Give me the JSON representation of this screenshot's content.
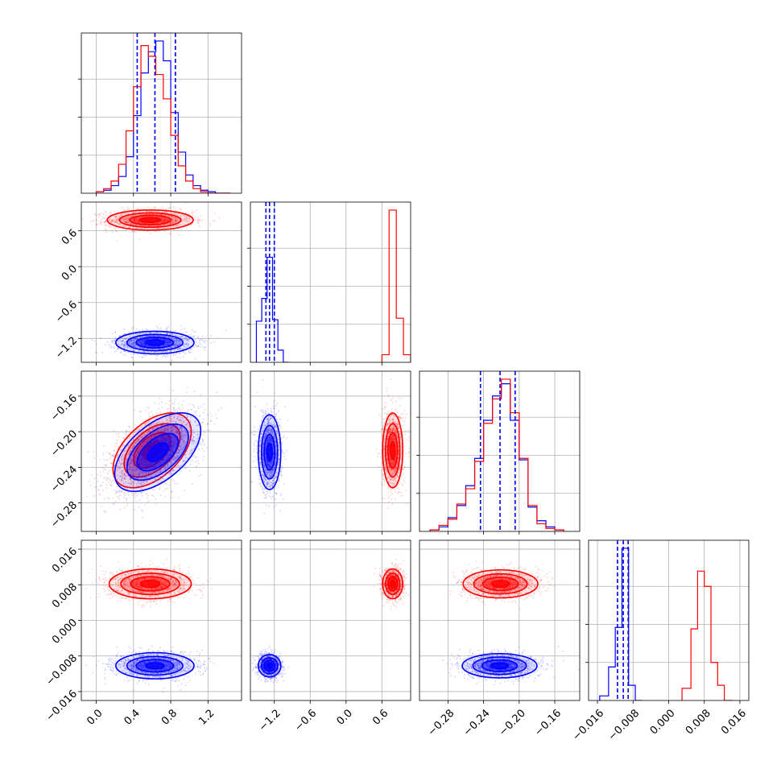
{
  "chart_data": {
    "type": "corner",
    "grid": true,
    "series": [
      {
        "color": "#0000ff"
      },
      {
        "color": "#ff0000"
      }
    ],
    "marginal_lines": {
      "color": "#0000ff",
      "style": "dashed"
    },
    "params": [
      {
        "range": [
          -0.16,
          1.56
        ],
        "ticks": [
          0.0,
          0.4,
          0.8,
          1.2
        ],
        "tick_labels": [
          "0.0",
          "0.4",
          "0.8",
          "1.2"
        ],
        "quantiles": [
          0.44,
          0.63,
          0.85
        ],
        "hist": {
          "bin_edges": [
            0.0,
            0.08,
            0.16,
            0.24,
            0.32,
            0.4,
            0.48,
            0.56,
            0.64,
            0.72,
            0.8,
            0.88,
            0.96,
            1.04,
            1.12,
            1.2,
            1.28,
            1.36,
            1.44
          ],
          "blue": [
            1,
            2,
            5,
            11,
            24,
            51,
            79,
            93,
            100,
            87,
            53,
            27,
            12,
            5,
            2,
            1,
            0,
            0
          ],
          "red": [
            1,
            3,
            8,
            19,
            41,
            70,
            97,
            90,
            78,
            62,
            38,
            18,
            8,
            3,
            1,
            0,
            0,
            0
          ]
        }
      },
      {
        "range": [
          -1.6,
          1.08
        ],
        "ticks": [
          -1.2,
          -0.6,
          0.0,
          0.6
        ],
        "tick_labels": [
          "−1.2",
          "−0.6",
          "0.0",
          "0.6"
        ],
        "quantiles": [
          -1.34,
          -1.28,
          -1.2
        ],
        "hist": {
          "bin_edges": [
            -1.5,
            -1.41,
            -1.32,
            -1.23,
            -1.14,
            -1.05,
            -0.96
          ],
          "blue": [
            27,
            42,
            69,
            28,
            8,
            0
          ],
          "bin_edges_red": [
            0.6,
            0.72,
            0.84,
            0.96,
            1.08
          ],
          "red": [
            5,
            100,
            29,
            5
          ]
        },
        "hist_max": 100
      },
      {
        "range": [
          -0.312,
          -0.132
        ],
        "ticks": [
          -0.28,
          -0.24,
          -0.2,
          -0.16
        ],
        "tick_labels": [
          "−0.28",
          "−0.24",
          "−0.20",
          "−0.16"
        ],
        "quantiles": [
          -0.2435,
          -0.2215,
          -0.2045
        ],
        "hist": {
          "bin_edges": [
            -0.3,
            -0.29,
            -0.28,
            -0.27,
            -0.26,
            -0.25,
            -0.24,
            -0.23,
            -0.22,
            -0.21,
            -0.2,
            -0.19,
            -0.18,
            -0.17,
            -0.16,
            -0.15
          ],
          "blue": [
            1,
            3,
            9,
            17,
            30,
            48,
            73,
            89,
            97,
            73,
            47,
            16,
            7,
            3,
            1
          ],
          "red": [
            1,
            4,
            8,
            18,
            28,
            46,
            71,
            87,
            100,
            78,
            48,
            17,
            5,
            2,
            1
          ]
        }
      },
      {
        "range": [
          -0.018,
          0.018
        ],
        "ticks": [
          -0.016,
          -0.008,
          0.0,
          0.008,
          0.016
        ],
        "tick_labels": [
          "−0.016",
          "−0.008",
          "0.000",
          "0.008",
          "0.016"
        ],
        "quantiles": [
          -0.0115,
          -0.0102,
          -0.0091
        ],
        "hist": {
          "bin_edges": [
            -0.0155,
            -0.0135,
            -0.012,
            -0.0105,
            -0.009,
            -0.0075,
            -0.006
          ],
          "blue": [
            3,
            22,
            48,
            100,
            10,
            0
          ],
          "bin_edges_red": [
            0.003,
            0.005,
            0.0065,
            0.008,
            0.0095,
            0.011,
            0.0125,
            0.0145
          ],
          "red": [
            8,
            47,
            85,
            75,
            25,
            10,
            0
          ]
        }
      }
    ],
    "pairs": {
      "1_0": {
        "blue": {
          "mean": [
            0.63,
            -1.27
          ],
          "sd": [
            0.2,
            0.09
          ],
          "rho": 0.0
        },
        "red": {
          "mean": [
            0.58,
            0.78
          ],
          "sd": [
            0.22,
            0.08
          ],
          "rho": 0.0
        }
      },
      "2_0": {
        "blue": {
          "mean": [
            0.66,
            -0.223
          ],
          "sd": [
            0.22,
            0.021
          ],
          "rho": 0.55
        },
        "red": {
          "mean": [
            0.6,
            -0.221
          ],
          "sd": [
            0.2,
            0.02
          ],
          "rho": 0.5
        }
      },
      "2_1": {
        "blue": {
          "mean": [
            -1.28,
            -0.223
          ],
          "sd": [
            0.09,
            0.02
          ],
          "rho": 0.0
        },
        "red": {
          "mean": [
            0.78,
            -0.221
          ],
          "sd": [
            0.08,
            0.02
          ],
          "rho": 0.0
        }
      },
      "3_0": {
        "blue": {
          "mean": [
            0.63,
            -0.0102
          ],
          "sd": [
            0.2,
            0.0014
          ],
          "rho": 0.0
        },
        "red": {
          "mean": [
            0.58,
            0.0082
          ],
          "sd": [
            0.21,
            0.0016
          ],
          "rho": 0.0
        }
      },
      "3_1": {
        "blue": {
          "mean": [
            -1.28,
            -0.0102
          ],
          "sd": [
            0.09,
            0.0012
          ],
          "rho": 0.0
        },
        "red": {
          "mean": [
            0.78,
            0.0082
          ],
          "sd": [
            0.08,
            0.0016
          ],
          "rho": 0.0
        }
      },
      "3_2": {
        "blue": {
          "mean": [
            -0.222,
            -0.0102
          ],
          "sd": [
            0.02,
            0.0013
          ],
          "rho": 0.0
        },
        "red": {
          "mean": [
            -0.221,
            0.0082
          ],
          "sd": [
            0.02,
            0.0015
          ],
          "rho": 0.0
        }
      }
    }
  }
}
